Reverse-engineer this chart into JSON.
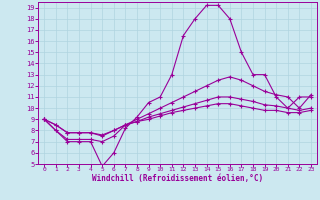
{
  "xlabel": "Windchill (Refroidissement éolien,°C)",
  "x_values": [
    0,
    1,
    2,
    3,
    4,
    5,
    6,
    7,
    8,
    9,
    10,
    11,
    12,
    13,
    14,
    15,
    16,
    17,
    18,
    19,
    20,
    21,
    22,
    23
  ],
  "line1_y": [
    9,
    8,
    7,
    7,
    7,
    4.8,
    6,
    8.2,
    9.2,
    10.5,
    11,
    13,
    16.5,
    18,
    19.2,
    19.2,
    18,
    15,
    13,
    13,
    11,
    10,
    11,
    11
  ],
  "line2_y": [
    9,
    8,
    7.2,
    7.2,
    7.2,
    7.0,
    7.5,
    8.5,
    9,
    9.5,
    10,
    10.5,
    11,
    11.5,
    12,
    12.5,
    12.8,
    12.5,
    12.0,
    11.5,
    11.2,
    11.0,
    10.0,
    11.2
  ],
  "line3_y": [
    9,
    8.5,
    7.8,
    7.8,
    7.8,
    7.5,
    8.0,
    8.5,
    8.8,
    9.2,
    9.5,
    9.8,
    10.1,
    10.4,
    10.7,
    11.0,
    11.0,
    10.8,
    10.6,
    10.3,
    10.2,
    10.0,
    9.8,
    10.0
  ],
  "line4_y": [
    9,
    8.5,
    7.8,
    7.8,
    7.8,
    7.6,
    8.0,
    8.5,
    8.8,
    9.0,
    9.3,
    9.6,
    9.8,
    10.0,
    10.2,
    10.4,
    10.4,
    10.2,
    10.0,
    9.8,
    9.8,
    9.6,
    9.6,
    9.8
  ],
  "line_color": "#990099",
  "bg_color": "#cce8f0",
  "grid_color": "#b0d4e0",
  "ylim": [
    5,
    19.5
  ],
  "xlim": [
    -0.5,
    23.5
  ],
  "yticks": [
    5,
    6,
    7,
    8,
    9,
    10,
    11,
    12,
    13,
    14,
    15,
    16,
    17,
    18,
    19
  ],
  "xticks": [
    0,
    1,
    2,
    3,
    4,
    5,
    6,
    7,
    8,
    9,
    10,
    11,
    12,
    13,
    14,
    15,
    16,
    17,
    18,
    19,
    20,
    21,
    22,
    23
  ]
}
